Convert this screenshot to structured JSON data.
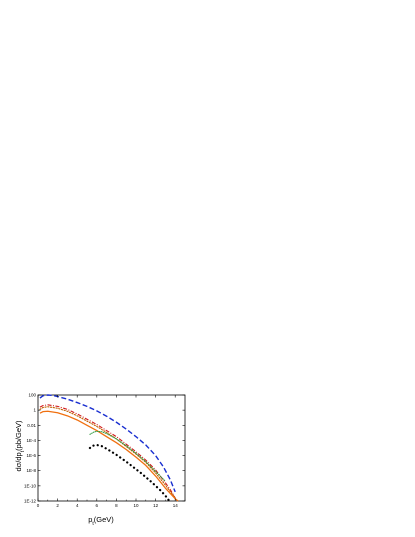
{
  "chart_data": {
    "type": "line",
    "xlabel_main": "p",
    "xlabel_sub": "t",
    "xlabel_rest": "(GeV)",
    "ylabel": "dσ/dp",
    "ylabel_sub": "t",
    "ylabel_rest": "(pb/GeV)",
    "xlim": [
      0,
      15
    ],
    "ylim_exp": [
      -12,
      2
    ],
    "y_log": true,
    "grid": false,
    "x_ticks": [
      {
        "v": 0,
        "label": "0"
      },
      {
        "v": 2,
        "label": "2"
      },
      {
        "v": 4,
        "label": "4"
      },
      {
        "v": 6,
        "label": "6"
      },
      {
        "v": 8,
        "label": "8"
      },
      {
        "v": 10,
        "label": "10"
      },
      {
        "v": 12,
        "label": "12"
      },
      {
        "v": 14,
        "label": "14"
      }
    ],
    "y_ticks": [
      {
        "e": 2,
        "label": "100"
      },
      {
        "e": 0,
        "label": "1"
      },
      {
        "e": -2,
        "label": "0.01"
      },
      {
        "e": -4,
        "label": "1E-4"
      },
      {
        "e": -6,
        "label": "1E-6"
      },
      {
        "e": -8,
        "label": "1E-8"
      },
      {
        "e": -10,
        "label": "1E-10"
      },
      {
        "e": -12,
        "label": "1E-12"
      }
    ],
    "series": [
      {
        "color": "#1a2fd0",
        "style": "dash",
        "width": 1.4,
        "x": [
          0.2,
          0.5,
          1,
          1.5,
          2,
          3,
          4,
          5,
          6,
          7,
          8,
          9,
          10,
          11,
          12,
          12.8,
          13.5,
          14
        ],
        "log10y": [
          1.6,
          1.9,
          2.0,
          1.95,
          1.8,
          1.45,
          1.0,
          0.5,
          -0.1,
          -0.8,
          -1.6,
          -2.5,
          -3.5,
          -4.6,
          -6.0,
          -7.5,
          -9.2,
          -10.8
        ]
      },
      {
        "color": "#d01a1a",
        "style": "dashdot",
        "width": 1.1,
        "x": [
          0.2,
          0.5,
          1,
          2,
          3,
          4,
          5,
          6,
          7,
          8,
          9,
          10,
          11,
          12,
          13,
          13.5,
          14
        ],
        "log10y": [
          0.4,
          0.6,
          0.7,
          0.5,
          0.1,
          -0.5,
          -1.2,
          -1.9,
          -2.7,
          -3.5,
          -4.5,
          -5.5,
          -6.6,
          -7.9,
          -9.6,
          -10.5,
          -11.6
        ]
      },
      {
        "color": "#c06000",
        "style": "dot",
        "width": 1.1,
        "x": [
          0.2,
          0.5,
          1,
          2,
          3,
          4,
          5,
          6,
          7,
          8,
          9,
          10,
          11,
          12,
          13,
          14
        ],
        "log10y": [
          0.1,
          0.35,
          0.45,
          0.25,
          -0.15,
          -0.75,
          -1.45,
          -2.15,
          -2.95,
          -3.8,
          -4.8,
          -5.8,
          -6.9,
          -8.3,
          -9.9,
          -11.6
        ]
      },
      {
        "color": "#f07010",
        "style": "solid",
        "width": 1.3,
        "x": [
          0.2,
          0.5,
          1,
          2,
          3,
          4,
          5,
          6,
          7,
          8,
          9,
          10,
          11,
          12,
          13,
          14,
          14.3
        ],
        "log10y": [
          -0.4,
          -0.2,
          -0.15,
          -0.35,
          -0.75,
          -1.3,
          -2.0,
          -2.7,
          -3.5,
          -4.3,
          -5.2,
          -6.2,
          -7.3,
          -8.7,
          -10.3,
          -11.7,
          -12.0
        ]
      },
      {
        "color": "#2f9a40",
        "style": "dotdense",
        "width": 1.0,
        "x": [
          5.3,
          5.7,
          6,
          6.5,
          7,
          8,
          9,
          10,
          11,
          12,
          13
        ],
        "log10y": [
          -3.2,
          -2.9,
          -2.8,
          -2.85,
          -3.1,
          -3.8,
          -4.7,
          -5.7,
          -6.8,
          -8.1,
          -9.4
        ]
      },
      {
        "color": "#000000",
        "style": "bigdot",
        "width": 2.2,
        "x": [
          5.3,
          5.6,
          6,
          6.5,
          7,
          7.5,
          8,
          8.5,
          9,
          9.5,
          10,
          10.5,
          11,
          11.5,
          12,
          12.5,
          13,
          13.4
        ],
        "log10y": [
          -5.0,
          -4.7,
          -4.6,
          -4.75,
          -5.1,
          -5.5,
          -5.9,
          -6.35,
          -6.8,
          -7.3,
          -7.8,
          -8.3,
          -8.85,
          -9.4,
          -10.0,
          -10.6,
          -11.3,
          -12.0
        ]
      }
    ]
  }
}
